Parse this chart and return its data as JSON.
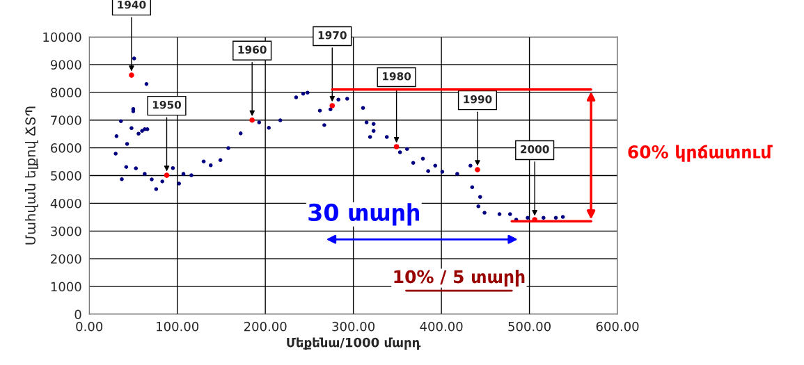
{
  "chart_data": {
    "type": "scatter",
    "xlabel": "Մեքենա/1000 մարդ",
    "ylabel": "Մահվան ելքով ՃՏՊ",
    "xlim": [
      0,
      600
    ],
    "ylim": [
      0,
      10000
    ],
    "xticks": [
      {
        "value": 0,
        "label": "0.00"
      },
      {
        "value": 100,
        "label": "100.00"
      },
      {
        "value": 200,
        "label": "200.00"
      },
      {
        "value": 300,
        "label": "300.00"
      },
      {
        "value": 400,
        "label": "400.00"
      },
      {
        "value": 500,
        "label": "500.00"
      },
      {
        "value": 600,
        "label": "600.00"
      }
    ],
    "yticks": [
      0,
      1000,
      2000,
      3000,
      4000,
      5000,
      6000,
      7000,
      8000,
      9000,
      10000
    ],
    "grid": true,
    "marker": "circle",
    "series": [
      {
        "color": "#000080",
        "x": [
          30,
          31,
          36,
          37,
          42,
          43,
          48,
          50,
          50,
          51,
          53,
          56,
          60,
          63,
          66,
          63,
          65,
          71,
          76,
          83,
          95,
          102,
          107,
          116,
          130,
          138,
          149,
          158,
          172,
          193,
          204,
          217,
          235,
          243,
          248,
          262,
          267,
          274,
          283,
          293,
          311,
          315,
          323,
          323,
          319,
          338,
          353,
          361,
          368,
          379,
          385,
          393,
          401,
          418,
          433,
          435,
          444,
          442,
          449,
          466,
          478,
          485,
          498,
          516,
          530,
          538
        ],
        "values": [
          5790,
          6420,
          6960,
          4870,
          5310,
          6140,
          6710,
          7320,
          7400,
          9220,
          5260,
          6510,
          6610,
          6670,
          6670,
          5060,
          8300,
          4860,
          4510,
          4790,
          5270,
          4710,
          5060,
          5010,
          5510,
          5370,
          5560,
          5990,
          6520,
          6920,
          6720,
          6990,
          7820,
          7950,
          7990,
          7340,
          6820,
          7390,
          7740,
          7770,
          7440,
          6920,
          6860,
          6610,
          6390,
          6390,
          5840,
          5960,
          5460,
          5610,
          5160,
          5360,
          5140,
          5060,
          5360,
          4580,
          4230,
          3890,
          3660,
          3610,
          3610,
          3410,
          3480,
          3480,
          3480,
          3510
        ]
      },
      {
        "color": "#ff0000",
        "x": [
          48,
          88,
          185,
          276,
          349,
          441,
          506
        ],
        "values": [
          8620,
          5010,
          7000,
          7520,
          6040,
          5210,
          3410
        ]
      }
    ],
    "ref_lines": [
      {
        "axis": "y",
        "value": 8100,
        "color": "#ff0000"
      },
      {
        "axis": "y",
        "value": 3350,
        "color": "#ff0000"
      }
    ],
    "annotations": [
      {
        "text": "1940",
        "x": 48,
        "y": 8620
      },
      {
        "text": "1950",
        "x": 88,
        "y": 5010
      },
      {
        "text": "1960",
        "x": 185,
        "y": 7000
      },
      {
        "text": "1970",
        "x": 276,
        "y": 7520
      },
      {
        "text": "1980",
        "x": 349,
        "y": 6040
      },
      {
        "text": "1990",
        "x": 441,
        "y": 5210
      },
      {
        "text": "2000",
        "x": 506,
        "y": 3410
      },
      "30 տարի",
      "10% / 5 տարի",
      "60% կրճատում"
    ]
  }
}
